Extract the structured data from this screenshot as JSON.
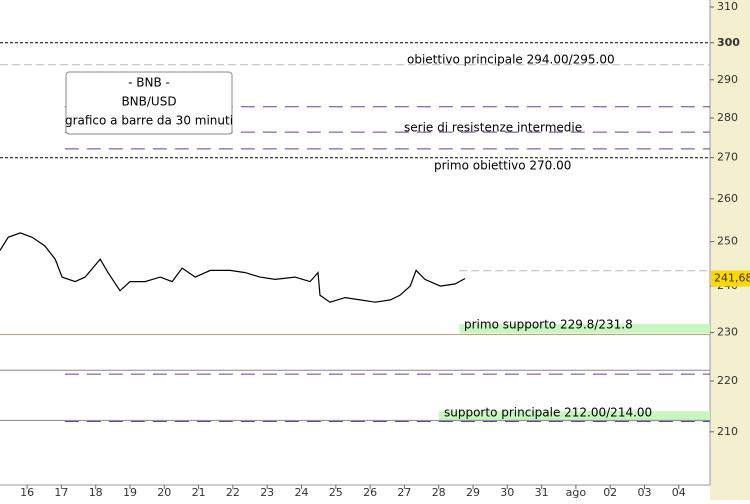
{
  "chart_data": {
    "type": "line",
    "log_scale": true,
    "ylim": [
      200,
      312
    ],
    "yticks": [
      210,
      220,
      230,
      240,
      250,
      260,
      270,
      280,
      290,
      300,
      310
    ],
    "xlim": [
      -0.79,
      19.91
    ],
    "categories": [
      "16",
      "17",
      "18",
      "19",
      "20",
      "21",
      "22",
      "23",
      "24",
      "25",
      "26",
      "27",
      "28",
      "29",
      "30",
      "31",
      "ago",
      "02",
      "03",
      "04"
    ],
    "legend": [
      "- BNB -",
      "BNB/USD",
      "grafico a barre da 30 minuti"
    ],
    "series": [
      {
        "name": "BNB/USD",
        "color": "#000000",
        "x": [
          -0.79,
          -0.55,
          -0.2,
          0.15,
          0.52,
          0.82,
          1.02,
          1.4,
          1.69,
          2.13,
          2.36,
          2.71,
          3.0,
          3.44,
          3.88,
          4.23,
          4.52,
          4.9,
          5.34,
          5.92,
          6.36,
          6.79,
          7.23,
          7.81,
          8.25,
          8.48,
          8.54,
          8.83,
          9.27,
          9.71,
          10.15,
          10.59,
          10.87,
          11.17,
          11.34,
          11.6,
          12.05,
          12.48,
          12.77
        ],
        "values": [
          248,
          251,
          252,
          251,
          249,
          246,
          242,
          241,
          242,
          246,
          243,
          239,
          241,
          241,
          242,
          241,
          244,
          242,
          243.5,
          243.5,
          243,
          242,
          241.5,
          242,
          241,
          243,
          238,
          236.5,
          237.5,
          237,
          236.5,
          237,
          238,
          240,
          243.5,
          241.5,
          240,
          240.5,
          241.68
        ]
      }
    ],
    "last": {
      "value": 241.68,
      "label": "241,68",
      "color": "#ffd800"
    },
    "levels": [
      {
        "value": 300,
        "color": "#000000",
        "dash": "3,2",
        "x0": -0.79
      },
      {
        "value": 270,
        "color": "#000000",
        "dash": "3,2",
        "x0": -0.79
      },
      {
        "value": 294,
        "color": "#bbbbbb",
        "dash": "8,4",
        "x0": -0.79
      },
      {
        "value": 282.9,
        "color": "#6a3d9a",
        "dash": "14,8",
        "x0": 1.1
      },
      {
        "value": 276.4,
        "color": "#6a3d9a",
        "dash": "14,8",
        "x0": 1.1
      },
      {
        "value": 272.2,
        "color": "#6a3d9a",
        "dash": "14,8",
        "x0": 1.1
      },
      {
        "value": 243.4,
        "color": "#bbbbbb",
        "dash": "8,4",
        "x0": 12.6
      },
      {
        "value": 229.6,
        "color": "#c8a070",
        "dash": "none",
        "x0": -0.79
      },
      {
        "value": 222.2,
        "color": "#888888",
        "dash": "none",
        "x0": -0.79
      },
      {
        "value": 221.4,
        "color": "#6a3d9a",
        "dash": "14,8",
        "x0": 1.1
      },
      {
        "value": 212.2,
        "color": "#888888",
        "dash": "none",
        "x0": -0.79
      },
      {
        "value": 212,
        "color": "#6a3d9a",
        "dash": "14,8",
        "x0": 1.1
      }
    ],
    "bands": [
      {
        "low": 229.8,
        "high": 231.8,
        "x0": 12.6,
        "color": "#c8f5c0"
      },
      {
        "low": 212,
        "high": 214,
        "x0": 12.0,
        "color": "#c8f5c0"
      }
    ],
    "annotations": [
      "obiettivo principale 294.00/295.00",
      "serie di resistenze intermedie",
      "primo obiettivo 270.00",
      "primo supporto 229.8/231.8",
      "supporto principale 212.00/214.00"
    ]
  }
}
